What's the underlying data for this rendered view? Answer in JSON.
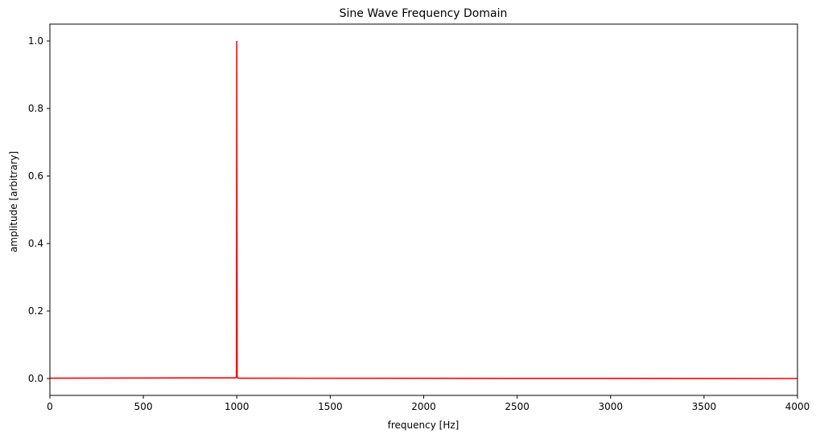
{
  "chart_data": {
    "type": "line",
    "title": "Sine Wave Frequency Domain",
    "xlabel": "frequency [Hz]",
    "ylabel": "amplitude [arbitrary]",
    "xlim": [
      0,
      4000
    ],
    "ylim": [
      -0.05,
      1.05
    ],
    "x_ticks": [
      0,
      500,
      1000,
      1500,
      2000,
      2500,
      3000,
      3500,
      4000
    ],
    "x_tick_labels": [
      "0",
      "500",
      "1000",
      "1500",
      "2000",
      "2500",
      "3000",
      "3500",
      "4000"
    ],
    "y_ticks": [
      0.0,
      0.2,
      0.4,
      0.6,
      0.8,
      1.0
    ],
    "y_tick_labels": [
      "0.0",
      "0.2",
      "0.4",
      "0.6",
      "0.8",
      "1.0"
    ],
    "grid": false,
    "legend": null,
    "series": [
      {
        "color": "#ff0000",
        "x": [
          0,
          990,
          995,
          998,
          1000,
          1002,
          1005,
          1010,
          4000
        ],
        "y": [
          0.001,
          0.002,
          0.002,
          0.003,
          1.0,
          0.003,
          0.002,
          0.001,
          0.0
        ]
      }
    ]
  }
}
